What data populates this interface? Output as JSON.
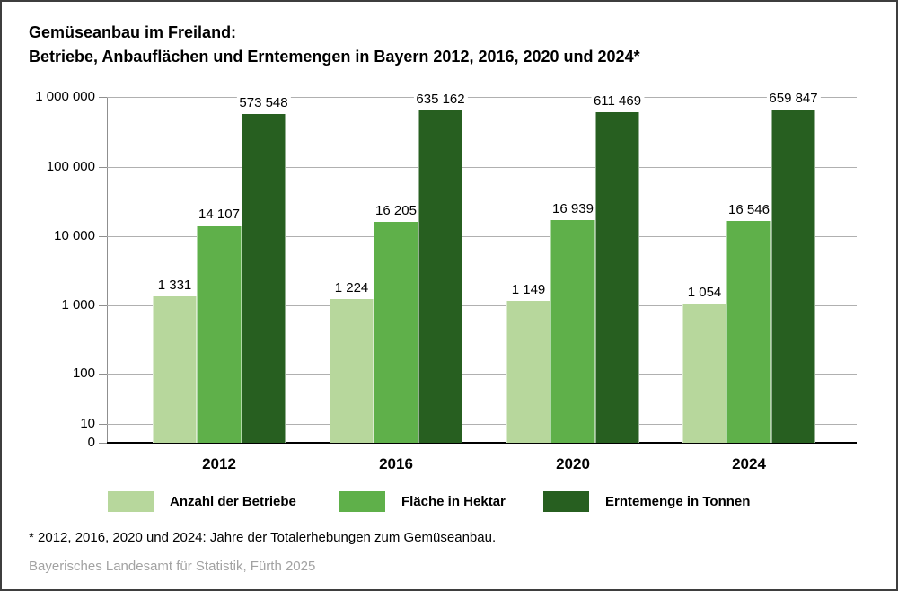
{
  "header": {
    "title_line1": "Gemüseanbau im Freiland:",
    "title_line2": "Betriebe, Anbauflächen und Erntemengen in Bayern 2012, 2016, 2020 und 2024*"
  },
  "chart_data": {
    "type": "bar",
    "y_scale": "log",
    "grid": true,
    "legend_position": "bottom",
    "ylim": [
      0,
      1000000
    ],
    "categories": [
      "2012",
      "2016",
      "2020",
      "2024"
    ],
    "series": [
      {
        "name": "Anzahl der Betriebe",
        "color": "#b7d79c",
        "values": [
          1331,
          1224,
          1149,
          1054
        ],
        "labels": [
          "1 331",
          "1 224",
          "1 149",
          "1 054"
        ]
      },
      {
        "name": "Fläche in Hektar",
        "color": "#5fb04a",
        "values": [
          14107,
          16205,
          16939,
          16546
        ],
        "labels": [
          "14 107",
          "16 205",
          "16 939",
          "16 546"
        ]
      },
      {
        "name": "Erntemenge in Tonnen",
        "color": "#275f20",
        "values": [
          573548,
          635162,
          611469,
          659847
        ],
        "labels": [
          "573 548",
          "635 162",
          "611 469",
          "659 847"
        ]
      }
    ],
    "y_ticks": [
      "1 000 000",
      "100 000",
      "10 000",
      "1 000",
      "100",
      "10",
      "0"
    ]
  },
  "footnote": "* 2012, 2016, 2020 und 2024: Jahre der Totalerhebungen zum Gemüseanbau.",
  "source": "Bayerisches Landesamt für Statistik, Fürth 2025"
}
